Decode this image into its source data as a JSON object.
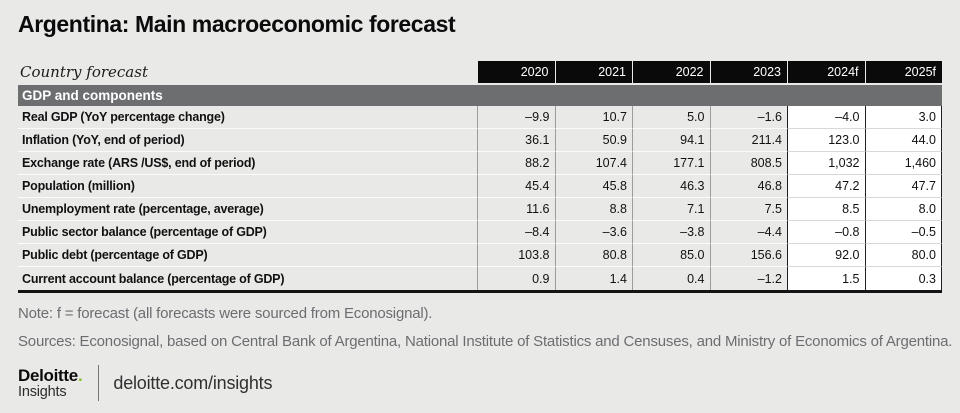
{
  "page": {
    "title": "Argentina: Main macroeconomic forecast"
  },
  "table": {
    "corner_label": "Country forecast",
    "years": [
      "2020",
      "2021",
      "2022",
      "2023",
      "2024f",
      "2025f"
    ],
    "section_header": "GDP and components",
    "rows": [
      {
        "label": "Real GDP (YoY percentage change)",
        "values": [
          "–9.9",
          "10.7",
          "5.0",
          "–1.6",
          "–4.0",
          "3.0"
        ]
      },
      {
        "label": "Inflation (YoY, end of period)",
        "values": [
          "36.1",
          "50.9",
          "94.1",
          "211.4",
          "123.0",
          "44.0"
        ]
      },
      {
        "label": "Exchange rate (ARS /US$, end of period)",
        "values": [
          "88.2",
          "107.4",
          "177.1",
          "808.5",
          "1,032",
          "1,460"
        ]
      },
      {
        "label": "Population (million)",
        "values": [
          "45.4",
          "45.8",
          "46.3",
          "46.8",
          "47.2",
          "47.7"
        ]
      },
      {
        "label": "Unemployment rate (percentage, average)",
        "values": [
          "11.6",
          "8.8",
          "7.1",
          "7.5",
          "8.5",
          "8.0"
        ]
      },
      {
        "label": "Public sector balance (percentage of GDP)",
        "values": [
          "–8.4",
          "–3.6",
          "–3.8",
          "–4.4",
          "–0.8",
          "–0.5"
        ]
      },
      {
        "label": "Public debt (percentage of GDP)",
        "values": [
          "103.8",
          "80.8",
          "85.0",
          "156.6",
          "92.0",
          "80.0"
        ]
      },
      {
        "label": "Current account balance (percentage of GDP)",
        "values": [
          "0.9",
          "1.4",
          "0.4",
          "–1.2",
          "1.5",
          "0.3"
        ]
      }
    ]
  },
  "notes": {
    "note": "Note: f = forecast (all forecasts were sourced from Econosignal).",
    "sources": "Sources: Econosignal, based on Central Bank of Argentina, National Institute of Statistics and Censuses, and Ministry of Economics of Argentina."
  },
  "footer": {
    "brand_line1": "Deloitte",
    "brand_dot": ".",
    "brand_line2": "Insights",
    "url": "deloitte.com/insights"
  },
  "colors": {
    "background": "#e9eae8",
    "header_bg": "#0a0a0a",
    "section_bg": "#6d6e70",
    "forecast_cell_bg": "#ffffff",
    "historical_cell_bg": "#e9eae8",
    "note_text": "#6b6d70",
    "brand_green": "#86bc25"
  },
  "chart_data": {
    "type": "table",
    "title": "Argentina: Main macroeconomic forecast",
    "section": "GDP and components",
    "columns": [
      "2020",
      "2021",
      "2022",
      "2023",
      "2024f",
      "2025f"
    ],
    "series": [
      {
        "name": "Real GDP (YoY percentage change)",
        "values": [
          -9.9,
          10.7,
          5.0,
          -1.6,
          -4.0,
          3.0
        ]
      },
      {
        "name": "Inflation (YoY, end of period)",
        "values": [
          36.1,
          50.9,
          94.1,
          211.4,
          123.0,
          44.0
        ]
      },
      {
        "name": "Exchange rate (ARS/US$, end of period)",
        "values": [
          88.2,
          107.4,
          177.1,
          808.5,
          1032,
          1460
        ]
      },
      {
        "name": "Population (million)",
        "values": [
          45.4,
          45.8,
          46.3,
          46.8,
          47.2,
          47.7
        ]
      },
      {
        "name": "Unemployment rate (percentage, average)",
        "values": [
          11.6,
          8.8,
          7.1,
          7.5,
          8.5,
          8.0
        ]
      },
      {
        "name": "Public sector balance (percentage of GDP)",
        "values": [
          -8.4,
          -3.6,
          -3.8,
          -4.4,
          -0.8,
          -0.5
        ]
      },
      {
        "name": "Public debt (percentage of GDP)",
        "values": [
          103.8,
          80.8,
          85.0,
          156.6,
          92.0,
          80.0
        ]
      },
      {
        "name": "Current account balance (percentage of GDP)",
        "values": [
          0.9,
          1.4,
          0.4,
          -1.2,
          1.5,
          0.3
        ]
      }
    ],
    "notes": [
      "f = forecast (all forecasts were sourced from Econosignal)"
    ]
  }
}
